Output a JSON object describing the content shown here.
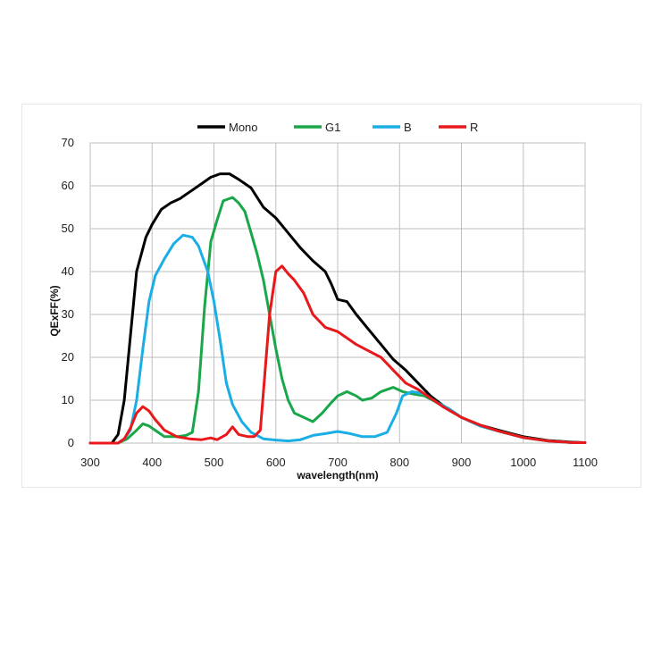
{
  "chart_data": {
    "type": "line",
    "title": "",
    "xlabel": "wavelength(nm)",
    "ylabel": "QExFF(%)",
    "xlim": [
      300,
      1100
    ],
    "ylim": [
      0,
      70
    ],
    "x_ticks": [
      300,
      400,
      500,
      600,
      700,
      800,
      900,
      1000,
      1100
    ],
    "y_ticks": [
      0,
      10,
      20,
      30,
      40,
      50,
      60,
      70
    ],
    "grid": true,
    "legend_position": "top",
    "series": [
      {
        "name": "Mono",
        "color": "#000000",
        "points": [
          [
            300,
            0
          ],
          [
            335,
            0
          ],
          [
            345,
            2
          ],
          [
            355,
            10
          ],
          [
            365,
            25
          ],
          [
            375,
            40
          ],
          [
            390,
            48
          ],
          [
            400,
            51
          ],
          [
            415,
            54.5
          ],
          [
            430,
            56
          ],
          [
            445,
            57
          ],
          [
            460,
            58.5
          ],
          [
            480,
            60.5
          ],
          [
            495,
            62
          ],
          [
            510,
            62.8
          ],
          [
            525,
            62.8
          ],
          [
            540,
            61.5
          ],
          [
            560,
            59.5
          ],
          [
            580,
            55
          ],
          [
            600,
            52.5
          ],
          [
            620,
            49
          ],
          [
            640,
            45.5
          ],
          [
            660,
            42.5
          ],
          [
            680,
            40
          ],
          [
            690,
            37
          ],
          [
            700,
            33.5
          ],
          [
            715,
            33
          ],
          [
            730,
            30
          ],
          [
            750,
            26.5
          ],
          [
            770,
            23
          ],
          [
            790,
            19.5
          ],
          [
            810,
            17
          ],
          [
            830,
            14
          ],
          [
            850,
            11
          ],
          [
            870,
            8.8
          ],
          [
            900,
            6
          ],
          [
            930,
            4.2
          ],
          [
            960,
            3
          ],
          [
            1000,
            1.5
          ],
          [
            1040,
            0.6
          ],
          [
            1080,
            0.2
          ],
          [
            1100,
            0.1
          ]
        ]
      },
      {
        "name": "G1",
        "color": "#19a74a",
        "points": [
          [
            300,
            0
          ],
          [
            345,
            0
          ],
          [
            360,
            1
          ],
          [
            375,
            3
          ],
          [
            385,
            4.5
          ],
          [
            395,
            4
          ],
          [
            405,
            3
          ],
          [
            420,
            1.5
          ],
          [
            440,
            1.5
          ],
          [
            455,
            1.8
          ],
          [
            465,
            2.5
          ],
          [
            475,
            12
          ],
          [
            485,
            32
          ],
          [
            495,
            47
          ],
          [
            505,
            52
          ],
          [
            515,
            56.5
          ],
          [
            530,
            57.3
          ],
          [
            540,
            56
          ],
          [
            550,
            54
          ],
          [
            560,
            49
          ],
          [
            570,
            44
          ],
          [
            580,
            38
          ],
          [
            590,
            30
          ],
          [
            600,
            22
          ],
          [
            610,
            15
          ],
          [
            620,
            10
          ],
          [
            630,
            7
          ],
          [
            645,
            6
          ],
          [
            660,
            5
          ],
          [
            675,
            7
          ],
          [
            690,
            9.5
          ],
          [
            700,
            11
          ],
          [
            715,
            12
          ],
          [
            730,
            11
          ],
          [
            740,
            10
          ],
          [
            755,
            10.5
          ],
          [
            770,
            12
          ],
          [
            790,
            13
          ],
          [
            805,
            12
          ],
          [
            820,
            11.5
          ],
          [
            840,
            11
          ],
          [
            860,
            9.5
          ],
          [
            880,
            8
          ],
          [
            900,
            6
          ],
          [
            930,
            4
          ],
          [
            960,
            2.8
          ],
          [
            1000,
            1.3
          ],
          [
            1040,
            0.5
          ],
          [
            1080,
            0.1
          ],
          [
            1100,
            0.1
          ]
        ]
      },
      {
        "name": "B",
        "color": "#1aaee5",
        "points": [
          [
            300,
            0
          ],
          [
            345,
            0
          ],
          [
            355,
            1
          ],
          [
            365,
            3
          ],
          [
            375,
            10
          ],
          [
            385,
            22
          ],
          [
            395,
            33
          ],
          [
            405,
            39
          ],
          [
            420,
            43
          ],
          [
            435,
            46.5
          ],
          [
            450,
            48.5
          ],
          [
            465,
            48
          ],
          [
            475,
            46
          ],
          [
            490,
            40
          ],
          [
            500,
            33
          ],
          [
            510,
            24
          ],
          [
            520,
            14
          ],
          [
            530,
            9
          ],
          [
            545,
            5
          ],
          [
            560,
            2.5
          ],
          [
            580,
            1
          ],
          [
            600,
            0.7
          ],
          [
            620,
            0.5
          ],
          [
            640,
            0.8
          ],
          [
            660,
            1.8
          ],
          [
            680,
            2.2
          ],
          [
            700,
            2.7
          ],
          [
            720,
            2.2
          ],
          [
            740,
            1.5
          ],
          [
            760,
            1.5
          ],
          [
            780,
            2.5
          ],
          [
            795,
            7
          ],
          [
            805,
            11
          ],
          [
            820,
            12
          ],
          [
            840,
            11.5
          ],
          [
            860,
            9.5
          ],
          [
            880,
            8
          ],
          [
            900,
            6
          ],
          [
            930,
            4
          ],
          [
            960,
            2.8
          ],
          [
            1000,
            1.3
          ],
          [
            1040,
            0.5
          ],
          [
            1080,
            0.1
          ],
          [
            1100,
            0.1
          ]
        ]
      },
      {
        "name": "R",
        "color": "#e8181b",
        "points": [
          [
            300,
            0
          ],
          [
            345,
            0
          ],
          [
            355,
            1
          ],
          [
            365,
            3.5
          ],
          [
            375,
            7
          ],
          [
            385,
            8.5
          ],
          [
            395,
            7.5
          ],
          [
            405,
            5.5
          ],
          [
            420,
            3
          ],
          [
            440,
            1.5
          ],
          [
            460,
            1
          ],
          [
            480,
            0.8
          ],
          [
            495,
            1.2
          ],
          [
            505,
            0.8
          ],
          [
            520,
            2
          ],
          [
            530,
            3.8
          ],
          [
            540,
            2
          ],
          [
            555,
            1.5
          ],
          [
            565,
            1.5
          ],
          [
            575,
            3
          ],
          [
            580,
            12
          ],
          [
            590,
            30
          ],
          [
            600,
            40
          ],
          [
            610,
            41.3
          ],
          [
            620,
            39.5
          ],
          [
            630,
            38
          ],
          [
            645,
            35
          ],
          [
            660,
            30
          ],
          [
            680,
            27
          ],
          [
            700,
            26
          ],
          [
            715,
            24.5
          ],
          [
            730,
            23
          ],
          [
            750,
            21.5
          ],
          [
            770,
            20
          ],
          [
            790,
            17
          ],
          [
            810,
            14
          ],
          [
            830,
            12.5
          ],
          [
            850,
            10.5
          ],
          [
            870,
            8.5
          ],
          [
            900,
            6
          ],
          [
            930,
            4.2
          ],
          [
            960,
            2.8
          ],
          [
            1000,
            1.3
          ],
          [
            1040,
            0.5
          ],
          [
            1080,
            0.1
          ],
          [
            1100,
            0.1
          ]
        ]
      }
    ]
  }
}
